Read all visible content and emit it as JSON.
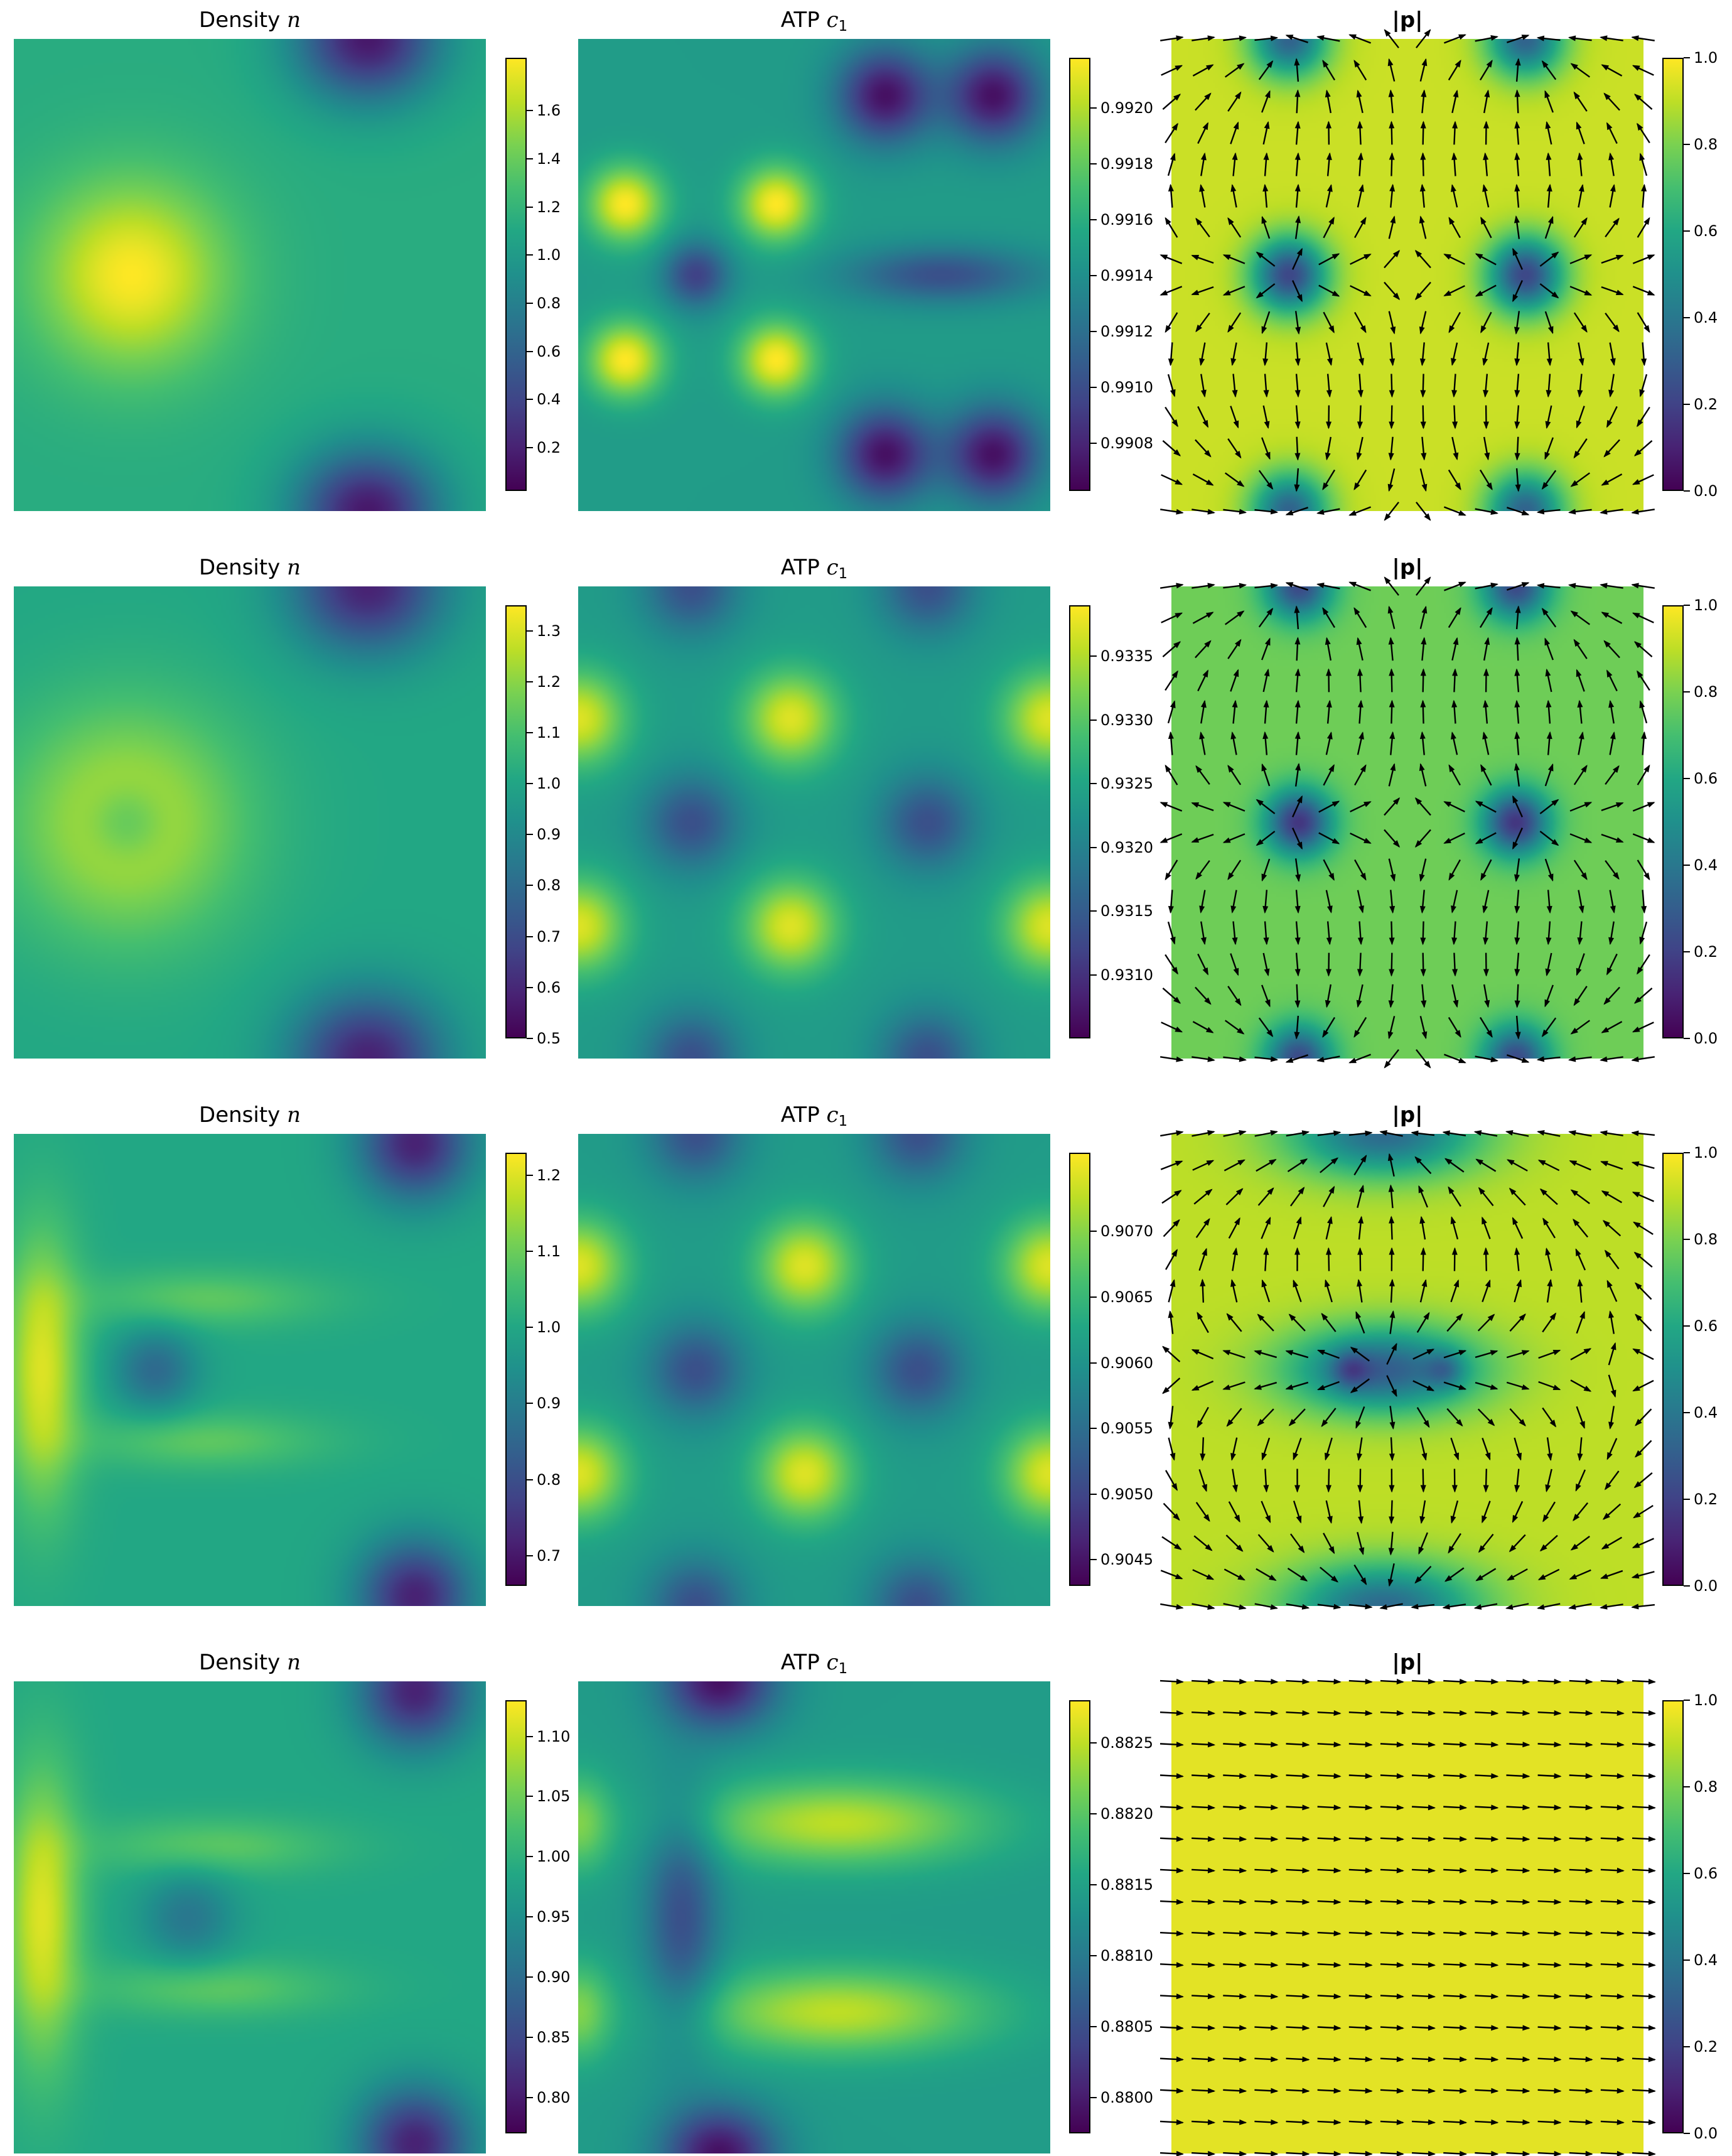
{
  "chart_data": [
    {
      "type": "heatmap",
      "row": 0,
      "col": 0,
      "title_base": "Density",
      "title_symbol": "n",
      "title_sub": "",
      "field": "density1",
      "colormap": "viridis",
      "vmin": 0.02,
      "vmax": 1.82,
      "colorbar_ticks": [
        "0.2",
        "0.4",
        "0.6",
        "0.8",
        "1.0",
        "1.2",
        "1.4",
        "1.6"
      ]
    },
    {
      "type": "heatmap",
      "row": 0,
      "col": 1,
      "title_base": "ATP",
      "title_symbol": "c",
      "title_sub": "1",
      "field": "atp1",
      "colormap": "viridis",
      "vmin": 0.99063,
      "vmax": 0.99218,
      "colorbar_ticks": [
        "0.9908",
        "0.9910",
        "0.9912",
        "0.9914",
        "0.9916",
        "0.9918",
        "0.9920"
      ]
    },
    {
      "type": "heatmap",
      "row": 0,
      "col": 2,
      "title_base": "|p|",
      "title_symbol": "",
      "title_sub": "",
      "field": "polar1",
      "quiver": "defects_x",
      "colormap": "viridis",
      "vmin": 0.0,
      "vmax": 1.0,
      "colorbar_ticks": [
        "0.0",
        "0.2",
        "0.4",
        "0.6",
        "0.8",
        "1.0"
      ]
    },
    {
      "type": "heatmap",
      "row": 1,
      "col": 0,
      "title_base": "Density",
      "title_symbol": "n",
      "title_sub": "",
      "field": "density2",
      "colormap": "viridis",
      "vmin": 0.5,
      "vmax": 1.35,
      "colorbar_ticks": [
        "0.5",
        "0.6",
        "0.7",
        "0.8",
        "0.9",
        "1.0",
        "1.1",
        "1.2",
        "1.3"
      ]
    },
    {
      "type": "heatmap",
      "row": 1,
      "col": 1,
      "title_base": "ATP",
      "title_symbol": "c",
      "title_sub": "1",
      "field": "atp2",
      "colormap": "viridis",
      "vmin": 0.9305,
      "vmax": 0.9339,
      "colorbar_ticks": [
        "0.9310",
        "0.9315",
        "0.9320",
        "0.9325",
        "0.9330",
        "0.9335"
      ]
    },
    {
      "type": "heatmap",
      "row": 1,
      "col": 2,
      "title_base": "|p|",
      "title_symbol": "",
      "title_sub": "",
      "field": "polar2",
      "quiver": "defects_x",
      "colormap": "viridis",
      "vmin": 0.0,
      "vmax": 1.0,
      "colorbar_ticks": [
        "0.0",
        "0.2",
        "0.4",
        "0.6",
        "0.8",
        "1.0"
      ]
    },
    {
      "type": "heatmap",
      "row": 2,
      "col": 0,
      "title_base": "Density",
      "title_symbol": "n",
      "title_sub": "",
      "field": "density3",
      "colormap": "viridis",
      "vmin": 0.66,
      "vmax": 1.23,
      "colorbar_ticks": [
        "0.7",
        "0.8",
        "0.9",
        "1.0",
        "1.1",
        "1.2"
      ]
    },
    {
      "type": "heatmap",
      "row": 2,
      "col": 1,
      "title_base": "ATP",
      "title_symbol": "c",
      "title_sub": "1",
      "field": "atp3",
      "colormap": "viridis",
      "vmin": 0.9043,
      "vmax": 0.9076,
      "colorbar_ticks": [
        "0.9045",
        "0.9050",
        "0.9055",
        "0.9060",
        "0.9065",
        "0.9070"
      ]
    },
    {
      "type": "heatmap",
      "row": 2,
      "col": 2,
      "title_base": "|p|",
      "title_symbol": "",
      "title_sub": "",
      "field": "polar3",
      "quiver": "defects_y",
      "colormap": "viridis",
      "vmin": 0.0,
      "vmax": 1.0,
      "colorbar_ticks": [
        "0.0",
        "0.2",
        "0.4",
        "0.6",
        "0.8",
        "1.0"
      ]
    },
    {
      "type": "heatmap",
      "row": 3,
      "col": 0,
      "title_base": "Density",
      "title_symbol": "n",
      "title_sub": "",
      "field": "density4",
      "colormap": "viridis",
      "vmin": 0.77,
      "vmax": 1.13,
      "colorbar_ticks": [
        "0.80",
        "0.85",
        "0.90",
        "0.95",
        "1.00",
        "1.05",
        "1.10"
      ]
    },
    {
      "type": "heatmap",
      "row": 3,
      "col": 1,
      "title_base": "ATP",
      "title_symbol": "c",
      "title_sub": "1",
      "field": "atp4",
      "colormap": "viridis",
      "vmin": 0.87975,
      "vmax": 0.8828,
      "colorbar_ticks": [
        "0.8800",
        "0.8805",
        "0.8810",
        "0.8815",
        "0.8820",
        "0.8825"
      ]
    },
    {
      "type": "heatmap",
      "row": 3,
      "col": 2,
      "title_base": "|p|",
      "title_symbol": "",
      "title_sub": "",
      "field": "polar4",
      "quiver": "uniform",
      "colormap": "viridis",
      "vmin": 0.0,
      "vmax": 1.0,
      "colorbar_ticks": [
        "0.0",
        "0.2",
        "0.4",
        "0.6",
        "0.8",
        "1.0"
      ]
    }
  ]
}
